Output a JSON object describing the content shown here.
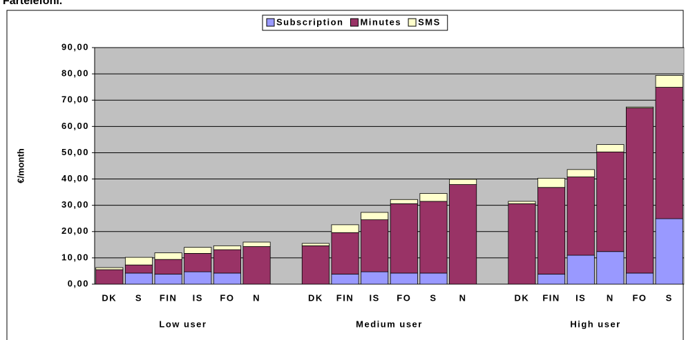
{
  "chart_data": {
    "type": "bar",
    "stacked": true,
    "title": "Fartelefoni.",
    "y_label": "€/month",
    "categories": [
      "DK",
      "S",
      "FIN",
      "IS",
      "FO",
      "N",
      null,
      "DK",
      "FIN",
      "IS",
      "FO",
      "S",
      "N",
      null,
      "DK",
      "FIN",
      "IS",
      "N",
      "FO",
      "S"
    ],
    "groups": [
      "Low user",
      "Medium user",
      "High user"
    ],
    "series": [
      {
        "name": "Subscription",
        "color": "#9999ff",
        "values": [
          0,
          4.2,
          3.8,
          4.7,
          4.2,
          0,
          null,
          0,
          3.8,
          4.7,
          4.2,
          4.2,
          0,
          null,
          0,
          3.8,
          11.0,
          12.4,
          4.2,
          24.9
        ]
      },
      {
        "name": "Minutes",
        "color": "#993366",
        "values": [
          5.5,
          3.1,
          5.6,
          7.0,
          8.9,
          14.3,
          null,
          14.6,
          15.8,
          19.8,
          26.4,
          27.3,
          37.9,
          null,
          30.6,
          33.0,
          29.8,
          37.9,
          62.8,
          50.0
        ]
      },
      {
        "name": "SMS",
        "color": "#ffffcc",
        "values": [
          0.8,
          2.9,
          2.5,
          2.3,
          1.5,
          1.7,
          null,
          0.9,
          3.0,
          2.8,
          1.6,
          3.0,
          2.0,
          null,
          0.9,
          3.5,
          2.8,
          2.8,
          0.4,
          4.5
        ]
      }
    ],
    "ylim": [
      0,
      90
    ],
    "yticks": [
      {
        "value": 0,
        "label": "0,00"
      },
      {
        "value": 10,
        "label": "10,00"
      },
      {
        "value": 20,
        "label": "20,00"
      },
      {
        "value": 30,
        "label": "30,00"
      },
      {
        "value": 40,
        "label": "40,00"
      },
      {
        "value": 50,
        "label": "50,00"
      },
      {
        "value": 60,
        "label": "60,00"
      },
      {
        "value": 70,
        "label": "70,00"
      },
      {
        "value": 80,
        "label": "80,00"
      },
      {
        "value": 90,
        "label": "90,00"
      }
    ],
    "grid": true,
    "plot_color": "#c0c0c0",
    "legend": "top"
  }
}
